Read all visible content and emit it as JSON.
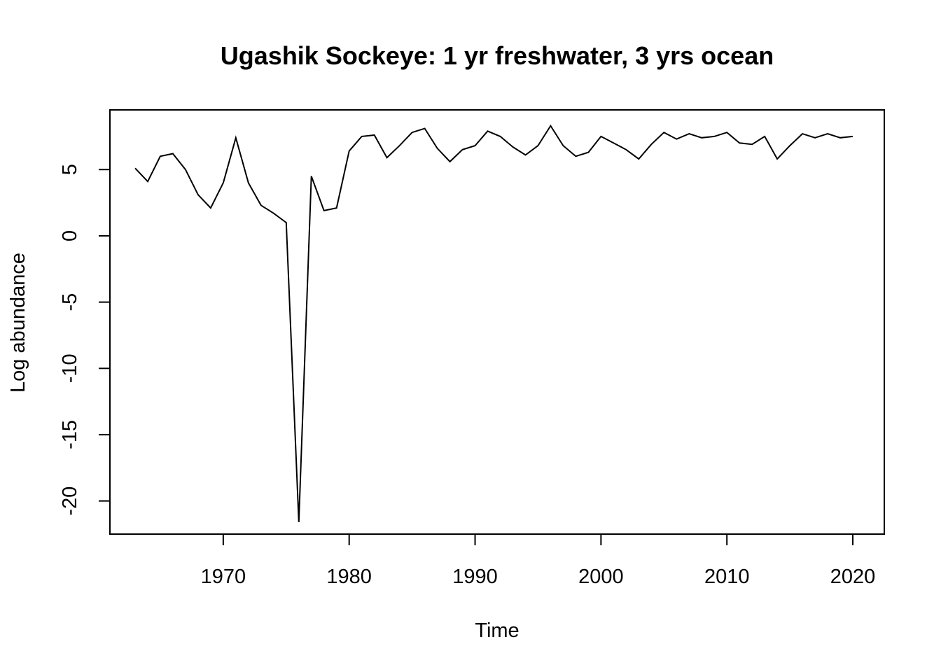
{
  "chart_data": {
    "type": "line",
    "title": "Ugashik Sockeye: 1 yr freshwater, 3 yrs ocean",
    "xlabel": "Time",
    "ylabel": "Log abundance",
    "xlim": [
      1961,
      2022.5
    ],
    "ylim": [
      -22.5,
      9.5
    ],
    "xticks": [
      1970,
      1980,
      1990,
      2000,
      2010,
      2020
    ],
    "yticks": [
      -20,
      -15,
      -10,
      -5,
      0,
      5
    ],
    "grid": false,
    "legend": "none",
    "line_color": "#000000",
    "series": [
      {
        "x": [
          1963,
          1964,
          1965,
          1966,
          1967,
          1968,
          1969,
          1970,
          1971,
          1972,
          1973,
          1974,
          1975,
          1976,
          1977,
          1978,
          1979,
          1980,
          1981,
          1982,
          1983,
          1984,
          1985,
          1986,
          1987,
          1988,
          1989,
          1990,
          1991,
          1992,
          1993,
          1994,
          1995,
          1996,
          1997,
          1998,
          1999,
          2000,
          2001,
          2002,
          2003,
          2004,
          2005,
          2006,
          2007,
          2008,
          2009,
          2010,
          2011,
          2012,
          2013,
          2014,
          2015,
          2016,
          2017,
          2018,
          2019,
          2020
        ],
        "values": [
          5.1,
          4.1,
          6.0,
          6.2,
          5.0,
          3.1,
          2.1,
          4.0,
          7.4,
          4.0,
          2.3,
          1.7,
          1.0,
          -21.6,
          4.5,
          1.9,
          2.1,
          6.4,
          7.5,
          7.6,
          5.9,
          6.8,
          7.8,
          8.1,
          6.6,
          5.6,
          6.5,
          6.8,
          7.9,
          7.5,
          6.7,
          6.1,
          6.8,
          8.3,
          6.8,
          6.0,
          6.3,
          7.5,
          7.0,
          6.5,
          5.8,
          6.9,
          7.8,
          7.3,
          7.7,
          7.4,
          7.5,
          7.8,
          7.0,
          6.9,
          7.5,
          5.8,
          6.8,
          7.7,
          7.4,
          7.7,
          7.4,
          7.5
        ]
      }
    ]
  }
}
